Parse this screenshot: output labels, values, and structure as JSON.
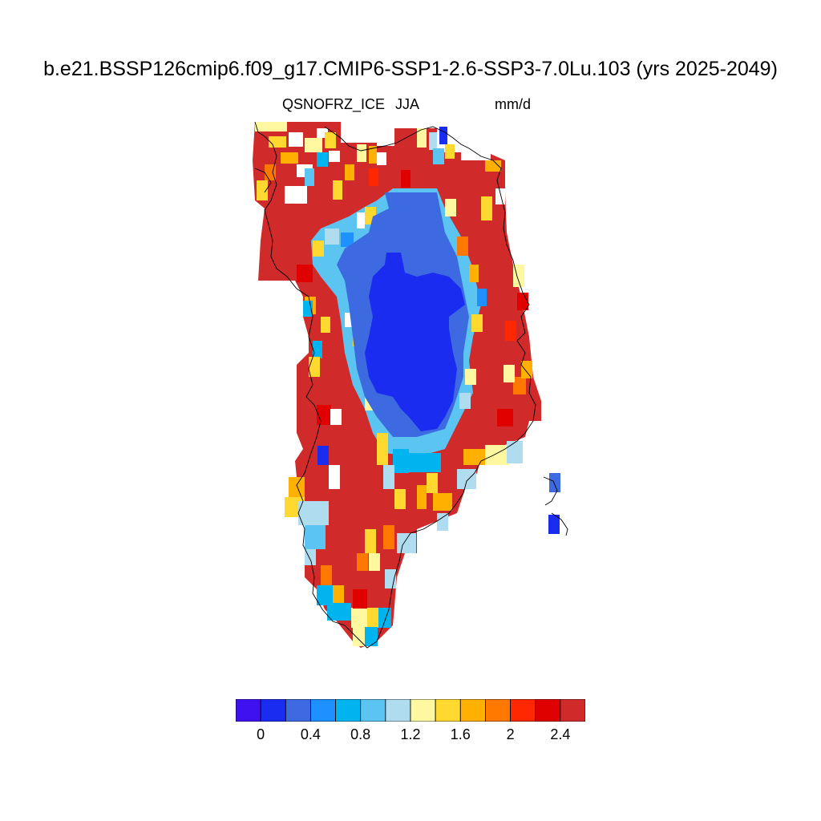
{
  "title": "b.e21.BSSP126cmip6.f09_g17.CMIP6-SSP1-2.6-SSP3-7.0Lu.103 (yrs 2025-2049)",
  "variable": "QSNOFRZ_ICE",
  "season": "JJA",
  "units": "mm/d",
  "colorbar": {
    "colors": [
      "#3f10f0",
      "#1a2cf0",
      "#3d6ae0",
      "#1e90ff",
      "#00b4f0",
      "#5cc4f0",
      "#b0dcf0",
      "#fff8a0",
      "#ffd830",
      "#ffb000",
      "#ff7800",
      "#ff2800",
      "#e00000",
      "#d02a2a"
    ],
    "ticks": [
      "0",
      "0.4",
      "0.8",
      "1.2",
      "1.6",
      "2",
      "2.4"
    ]
  }
}
